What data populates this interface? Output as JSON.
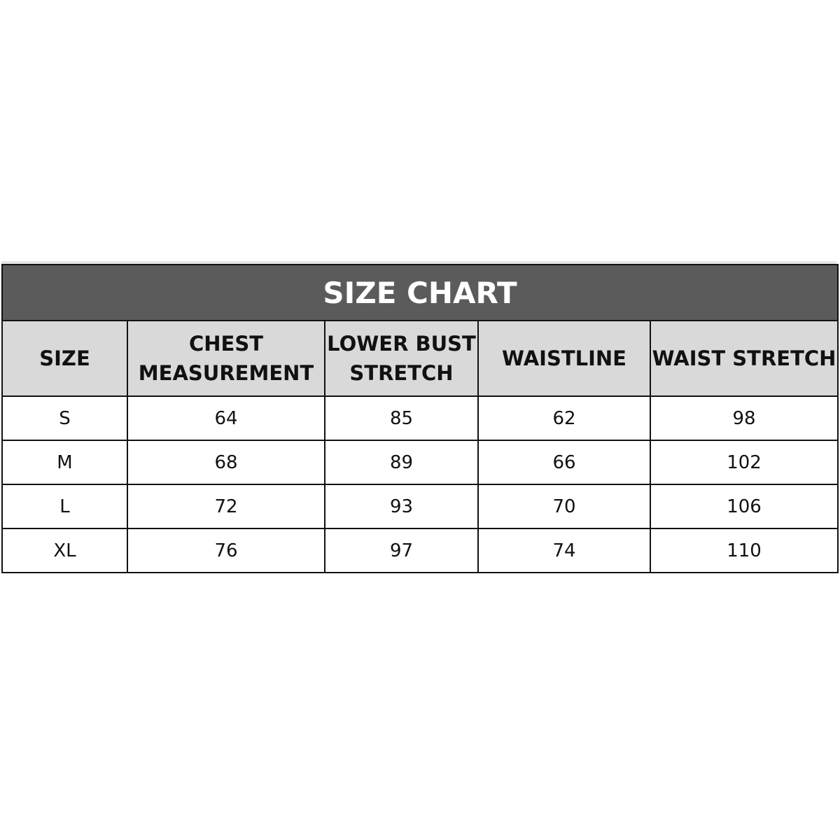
{
  "title": "SIZE CHART",
  "colors": {
    "title_bg": "#5b5b5b",
    "header_bg": "#d9d9d9",
    "border": "#111111"
  },
  "headers": [
    "SIZE",
    "CHEST MEASUREMENT",
    "LOWER BUST STRETCH",
    "WAISTLINE",
    "WAIST STRETCH"
  ],
  "rows": [
    [
      "S",
      "64",
      "85",
      "62",
      "98"
    ],
    [
      "M",
      "68",
      "89",
      "66",
      "102"
    ],
    [
      "L",
      "72",
      "93",
      "70",
      "106"
    ],
    [
      "XL",
      "76",
      "97",
      "74",
      "110"
    ]
  ]
}
